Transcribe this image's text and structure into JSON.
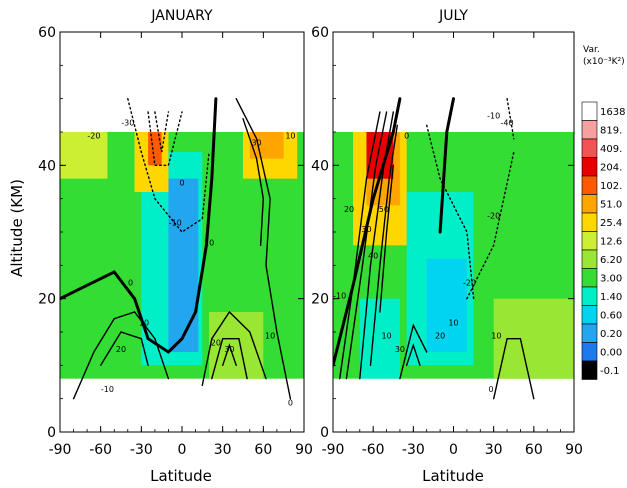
{
  "chart_data": {
    "type": "heatmap",
    "ylabel": "Altitude (KM)",
    "xlabel": "Latitude",
    "x_ticks": [
      "-90",
      "-60",
      "-30",
      "0",
      "30",
      "60",
      "90"
    ],
    "y_ticks": [
      "0",
      "20",
      "40",
      "60"
    ],
    "xlim": [
      -90,
      90
    ],
    "ylim": [
      0,
      60
    ],
    "data_altitude_range": [
      8,
      45
    ],
    "panels": [
      {
        "title": "JANUARY",
        "fill_regions": [
          {
            "lat": [
              -90,
              90
            ],
            "alt": [
              8,
              45
            ],
            "level": "3.00"
          },
          {
            "lat": [
              -30,
              15
            ],
            "alt": [
              10,
              42
            ],
            "level": "1.40"
          },
          {
            "lat": [
              -10,
              12
            ],
            "alt": [
              12,
              38
            ],
            "level": "0.20"
          },
          {
            "lat": [
              -35,
              -10
            ],
            "alt": [
              36,
              45
            ],
            "level": "25.4"
          },
          {
            "lat": [
              -25,
              -15
            ],
            "alt": [
              40,
              45
            ],
            "level": "102."
          },
          {
            "lat": [
              45,
              85
            ],
            "alt": [
              38,
              45
            ],
            "level": "25.4"
          },
          {
            "lat": [
              50,
              75
            ],
            "alt": [
              41,
              45
            ],
            "level": "51.0"
          },
          {
            "lat": [
              -90,
              -55
            ],
            "alt": [
              38,
              45
            ],
            "level": "12.6"
          },
          {
            "lat": [
              20,
              60
            ],
            "alt": [
              8,
              18
            ],
            "level": "6.20"
          }
        ],
        "contours": [
          {
            "level": "0",
            "style": "solid",
            "points": [
              [
                -90,
                20
              ],
              [
                -70,
                22
              ],
              [
                -50,
                24
              ],
              [
                -35,
                20
              ],
              [
                -25,
                14
              ],
              [
                -10,
                12
              ],
              [
                0,
                14
              ],
              [
                10,
                18
              ],
              [
                18,
                28
              ],
              [
                22,
                38
              ],
              [
                25,
                50
              ]
            ]
          },
          {
            "level": "10",
            "style": "solid",
            "points": [
              [
                -80,
                5
              ],
              [
                -65,
                12
              ],
              [
                -50,
                17
              ],
              [
                -35,
                18
              ],
              [
                -20,
                14
              ],
              [
                -10,
                8
              ]
            ]
          },
          {
            "level": "20",
            "style": "solid",
            "points": [
              [
                -60,
                10
              ],
              [
                -45,
                15
              ],
              [
                -30,
                14
              ],
              [
                -25,
                10
              ]
            ]
          },
          {
            "level": "10",
            "style": "solid",
            "points": [
              [
                15,
                7
              ],
              [
                22,
                14
              ],
              [
                35,
                18
              ],
              [
                50,
                15
              ],
              [
                62,
                8
              ]
            ]
          },
          {
            "level": "20",
            "style": "solid",
            "points": [
              [
                22,
                8
              ],
              [
                30,
                14
              ],
              [
                42,
                14
              ],
              [
                48,
                8
              ]
            ]
          },
          {
            "level": "30",
            "style": "solid",
            "points": [
              [
                30,
                10
              ],
              [
                35,
                13
              ],
              [
                40,
                10
              ]
            ]
          },
          {
            "level": "10",
            "style": "solid",
            "points": [
              [
                40,
                50
              ],
              [
                55,
                44
              ],
              [
                65,
                35
              ],
              [
                62,
                25
              ],
              [
                70,
                15
              ],
              [
                80,
                5
              ]
            ]
          },
          {
            "level": "30",
            "style": "solid",
            "points": [
              [
                45,
                47
              ],
              [
                55,
                41
              ],
              [
                60,
                35
              ],
              [
                58,
                28
              ]
            ]
          },
          {
            "level": "-10",
            "style": "dotted",
            "points": [
              [
                -40,
                50
              ],
              [
                -30,
                42
              ],
              [
                -20,
                35
              ],
              [
                0,
                30
              ],
              [
                15,
                32
              ],
              [
                20,
                42
              ]
            ]
          },
          {
            "level": "-30",
            "style": "dotted",
            "points": [
              [
                -25,
                48
              ],
              [
                -20,
                40
              ],
              [
                -10,
                40
              ],
              [
                0,
                48
              ]
            ]
          },
          {
            "level": "-40",
            "style": "dotted",
            "points": [
              [
                -20,
                48
              ],
              [
                -15,
                42
              ],
              [
                -10,
                48
              ]
            ]
          }
        ],
        "labels": [
          {
            "text": "0",
            "lat": -38,
            "alt": 22
          },
          {
            "text": "10",
            "lat": -28,
            "alt": 16
          },
          {
            "text": "20",
            "lat": -45,
            "alt": 12
          },
          {
            "text": "10",
            "lat": 20,
            "alt": 28
          },
          {
            "text": "20",
            "lat": 25,
            "alt": 13
          },
          {
            "text": "30",
            "lat": 35,
            "alt": 12
          },
          {
            "text": "10",
            "lat": 65,
            "alt": 14
          },
          {
            "text": "30",
            "lat": 55,
            "alt": 43
          },
          {
            "text": "10",
            "lat": 80,
            "alt": 44
          },
          {
            "text": "-10",
            "lat": -5,
            "alt": 31
          },
          {
            "text": "-30",
            "lat": -40,
            "alt": 46
          },
          {
            "text": "-20",
            "lat": -65,
            "alt": 44
          },
          {
            "text": "-10",
            "lat": -55,
            "alt": 6
          },
          {
            "text": "0",
            "lat": 0,
            "alt": 37
          },
          {
            "text": "0",
            "lat": 80,
            "alt": 4
          }
        ]
      },
      {
        "title": "JULY",
        "fill_regions": [
          {
            "lat": [
              -90,
              90
            ],
            "alt": [
              8,
              45
            ],
            "level": "3.00"
          },
          {
            "lat": [
              -35,
              15
            ],
            "alt": [
              10,
              36
            ],
            "level": "1.40"
          },
          {
            "lat": [
              -20,
              10
            ],
            "alt": [
              12,
              26
            ],
            "level": "0.60"
          },
          {
            "lat": [
              -70,
              -40
            ],
            "alt": [
              8,
              20
            ],
            "level": "1.40"
          },
          {
            "lat": [
              -75,
              -35
            ],
            "alt": [
              28,
              45
            ],
            "level": "25.4"
          },
          {
            "lat": [
              -65,
              -40
            ],
            "alt": [
              34,
              45
            ],
            "level": "51.0"
          },
          {
            "lat": [
              -65,
              -45
            ],
            "alt": [
              38,
              45
            ],
            "level": "204."
          },
          {
            "lat": [
              30,
              90
            ],
            "alt": [
              8,
              20
            ],
            "level": "6.20"
          }
        ],
        "contours": [
          {
            "level": "0",
            "style": "solid",
            "points": [
              [
                -90,
                10
              ],
              [
                -75,
                22
              ],
              [
                -60,
                35
              ],
              [
                -45,
                45
              ],
              [
                -40,
                50
              ]
            ]
          },
          {
            "level": "10",
            "style": "solid",
            "points": [
              [
                -85,
                8
              ],
              [
                -75,
                22
              ],
              [
                -65,
                38
              ],
              [
                -55,
                48
              ]
            ]
          },
          {
            "level": "20",
            "style": "solid",
            "points": [
              [
                -80,
                8
              ],
              [
                -68,
                25
              ],
              [
                -58,
                40
              ],
              [
                -50,
                48
              ]
            ]
          },
          {
            "level": "30",
            "style": "solid",
            "points": [
              [
                -70,
                8
              ],
              [
                -62,
                25
              ],
              [
                -52,
                40
              ],
              [
                -45,
                48
              ]
            ]
          },
          {
            "level": "40",
            "style": "solid",
            "points": [
              [
                -62,
                10
              ],
              [
                -55,
                25
              ],
              [
                -48,
                38
              ],
              [
                -42,
                46
              ]
            ]
          },
          {
            "level": "50",
            "style": "solid",
            "points": [
              [
                -55,
                18
              ],
              [
                -50,
                30
              ],
              [
                -45,
                40
              ]
            ]
          },
          {
            "level": "20",
            "style": "solid",
            "points": [
              [
                -40,
                8
              ],
              [
                -30,
                16
              ],
              [
                -20,
                12
              ]
            ]
          },
          {
            "level": "30",
            "style": "solid",
            "points": [
              [
                -35,
                10
              ],
              [
                -30,
                13
              ],
              [
                -25,
                10
              ]
            ]
          },
          {
            "level": "10",
            "style": "solid",
            "points": [
              [
                30,
                5
              ],
              [
                40,
                14
              ],
              [
                50,
                14
              ],
              [
                60,
                5
              ]
            ]
          },
          {
            "level": "0",
            "style": "solid",
            "points": [
              [
                -10,
                30
              ],
              [
                -5,
                45
              ],
              [
                0,
                50
              ]
            ]
          },
          {
            "level": "-10",
            "style": "dotted",
            "points": [
              [
                -20,
                46
              ],
              [
                -10,
                38
              ],
              [
                10,
                30
              ],
              [
                15,
                20
              ]
            ]
          },
          {
            "level": "-20",
            "style": "dotted",
            "points": [
              [
                10,
                20
              ],
              [
                30,
                28
              ],
              [
                45,
                42
              ]
            ]
          },
          {
            "level": "-40",
            "style": "dotted",
            "points": [
              [
                40,
                50
              ],
              [
                45,
                44
              ]
            ]
          }
        ],
        "labels": [
          {
            "text": "-10",
            "lat": -85,
            "alt": 20
          },
          {
            "text": "20",
            "lat": -78,
            "alt": 33
          },
          {
            "text": "30",
            "lat": -65,
            "alt": 30
          },
          {
            "text": "40",
            "lat": -60,
            "alt": 26
          },
          {
            "text": "50",
            "lat": -52,
            "alt": 33
          },
          {
            "text": "10",
            "lat": -50,
            "alt": 14
          },
          {
            "text": "30",
            "lat": -40,
            "alt": 12
          },
          {
            "text": "20",
            "lat": -10,
            "alt": 14
          },
          {
            "text": "10",
            "lat": 0,
            "alt": 16
          },
          {
            "text": "-20",
            "lat": 12,
            "alt": 22
          },
          {
            "text": "-20",
            "lat": 30,
            "alt": 32
          },
          {
            "text": "-10",
            "lat": 30,
            "alt": 47
          },
          {
            "text": "-40",
            "lat": 40,
            "alt": 46
          },
          {
            "text": "10",
            "lat": 32,
            "alt": 14
          },
          {
            "text": "0",
            "lat": -35,
            "alt": 44
          },
          {
            "text": "0",
            "lat": 28,
            "alt": 6
          }
        ]
      }
    ],
    "colorbar": {
      "title": "Var.",
      "unit": "(x10⁻³K²)",
      "levels": [
        "1638",
        "819.",
        "409.",
        "204.",
        "102.",
        "51.0",
        "25.4",
        "12.6",
        "6.20",
        "3.00",
        "1.40",
        "0.60",
        "0.20",
        "0.00",
        "-0.1"
      ],
      "colors": [
        "#ffffff",
        "#f7a0a0",
        "#f25454",
        "#e60000",
        "#ff5a00",
        "#ffa500",
        "#ffd700",
        "#ccee33",
        "#99e633",
        "#33dd33",
        "#00eec8",
        "#00d4f0",
        "#22a6ee",
        "#1e78ee",
        "#000000"
      ]
    }
  }
}
